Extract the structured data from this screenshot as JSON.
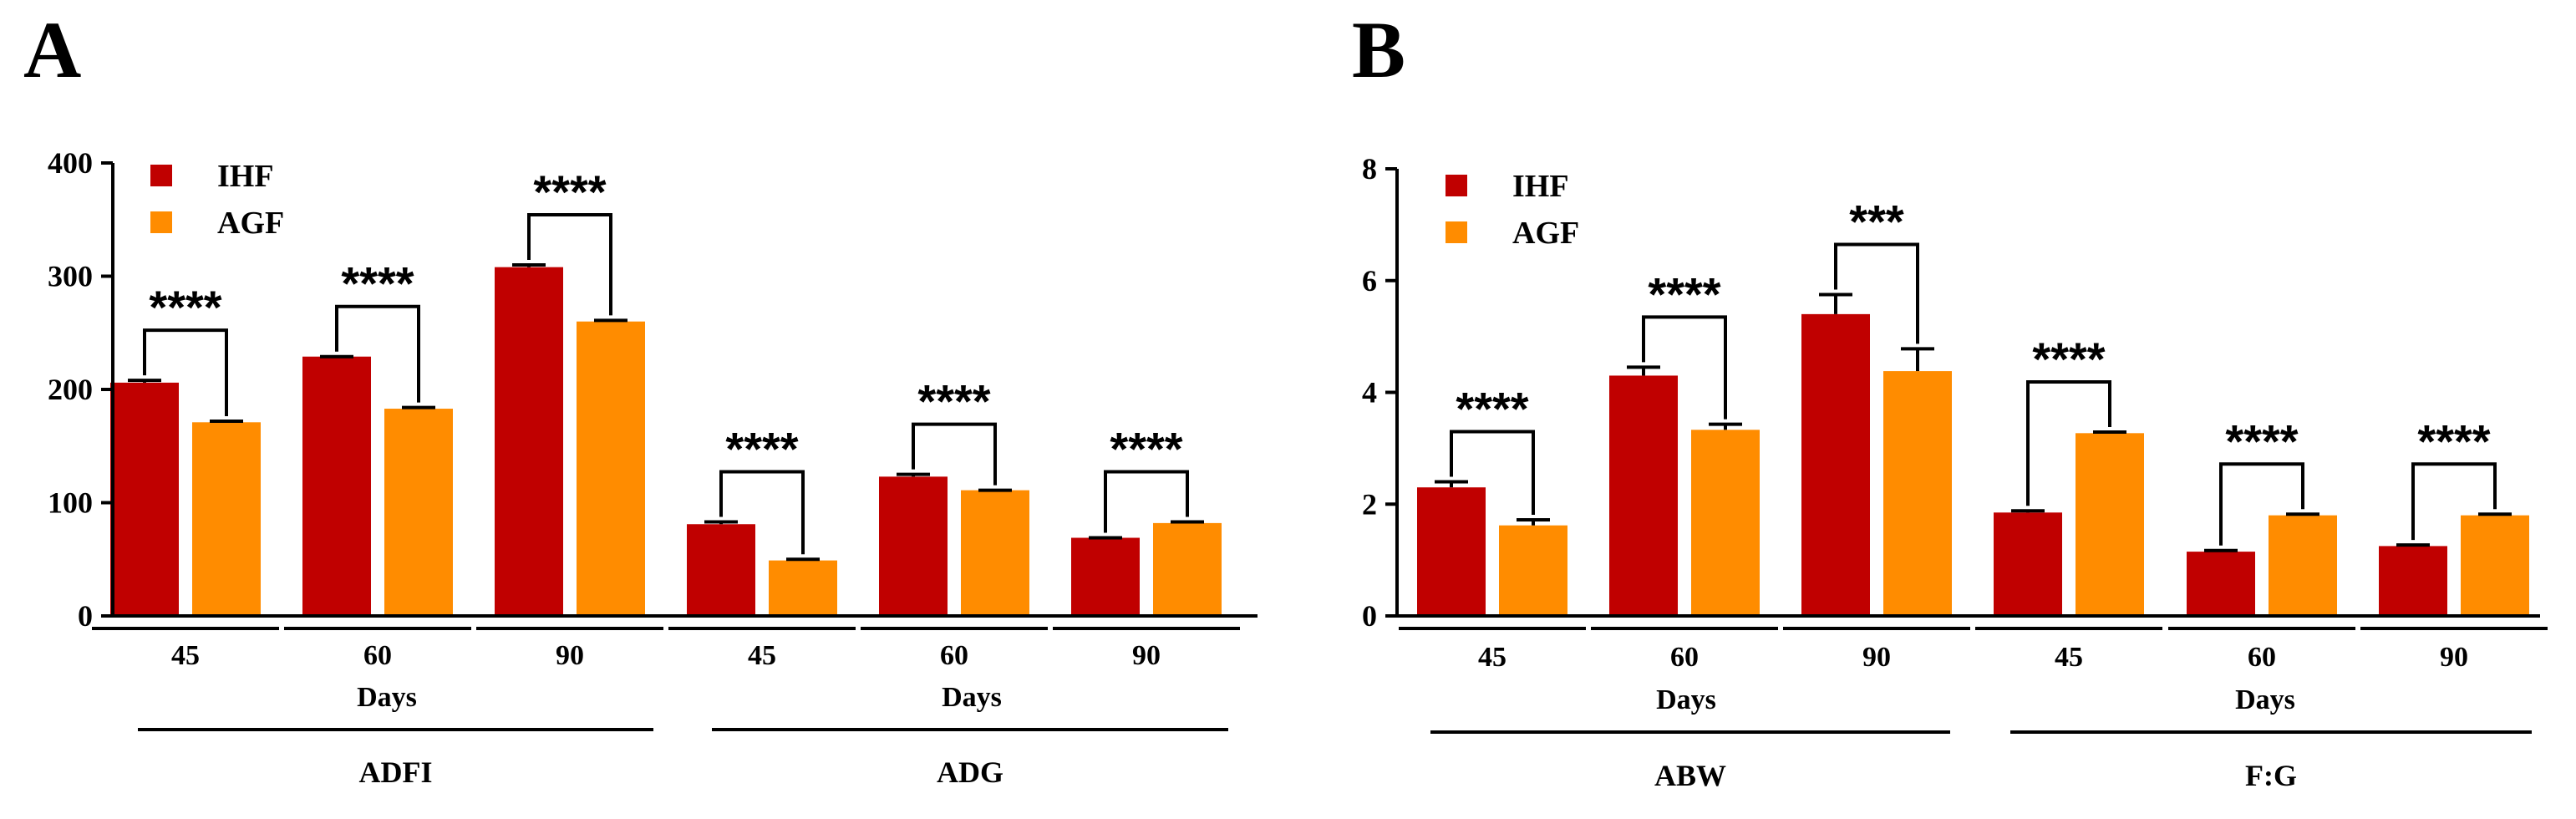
{
  "colors": {
    "IHF": "#C00000",
    "AGF": "#FF8C00"
  },
  "chart_data": [
    {
      "type": "bar",
      "panel": "A",
      "ylim": [
        0,
        400
      ],
      "yticks": [
        0,
        100,
        200,
        300,
        400
      ],
      "ytick_labels": [
        "0",
        "100",
        "200",
        "300",
        "400"
      ],
      "legend": {
        "position": "top-left",
        "entries": [
          "IHF",
          "AGF"
        ]
      },
      "categories": [
        "45",
        "60",
        "90",
        "45",
        "60",
        "90"
      ],
      "xlabels": [
        "45",
        "60",
        "90",
        "45",
        "60",
        "90"
      ],
      "days_labels": [
        "Days",
        "Days"
      ],
      "groups": [
        {
          "label": "ADFI",
          "categories": [
            0,
            1,
            2
          ]
        },
        {
          "label": "ADG",
          "categories": [
            3,
            4,
            5
          ]
        }
      ],
      "series": [
        {
          "name": "IHF",
          "values": [
            206,
            229,
            308,
            81,
            123,
            69
          ],
          "errors": [
            2,
            0,
            2,
            2,
            2,
            0
          ]
        },
        {
          "name": "AGF",
          "values": [
            171,
            183,
            260,
            49,
            111,
            82
          ],
          "errors": [
            1,
            1,
            1,
            1,
            0,
            1
          ]
        }
      ],
      "significance": [
        "****",
        "****",
        "****",
        "****",
        "****",
        "****"
      ]
    },
    {
      "type": "bar",
      "panel": "B",
      "ylim": [
        0,
        8
      ],
      "yticks": [
        0,
        2,
        4,
        6,
        8
      ],
      "ytick_labels": [
        "0",
        "2",
        "4",
        "6",
        "8"
      ],
      "legend": {
        "position": "top-left",
        "entries": [
          "IHF",
          "AGF"
        ]
      },
      "categories": [
        "45",
        "60",
        "90",
        "45",
        "60",
        "90"
      ],
      "xlabels": [
        "45",
        "60",
        "90",
        "45",
        "60",
        "90"
      ],
      "days_labels": [
        "Days",
        "Days"
      ],
      "groups": [
        {
          "label": "ABW",
          "categories": [
            0,
            1,
            2
          ]
        },
        {
          "label": "F:G",
          "categories": [
            3,
            4,
            5
          ]
        }
      ],
      "series": [
        {
          "name": "IHF",
          "values": [
            2.3,
            4.3,
            5.4,
            1.85,
            1.15,
            1.25
          ],
          "errors": [
            0.1,
            0.15,
            0.35,
            0.03,
            0.02,
            0.02
          ]
        },
        {
          "name": "AGF",
          "values": [
            1.62,
            3.33,
            4.38,
            3.27,
            1.8,
            1.8
          ],
          "errors": [
            0.1,
            0.1,
            0.4,
            0.02,
            0.02,
            0.02
          ]
        }
      ],
      "significance": [
        "****",
        "****",
        "***",
        "****",
        "****",
        "****"
      ]
    }
  ]
}
